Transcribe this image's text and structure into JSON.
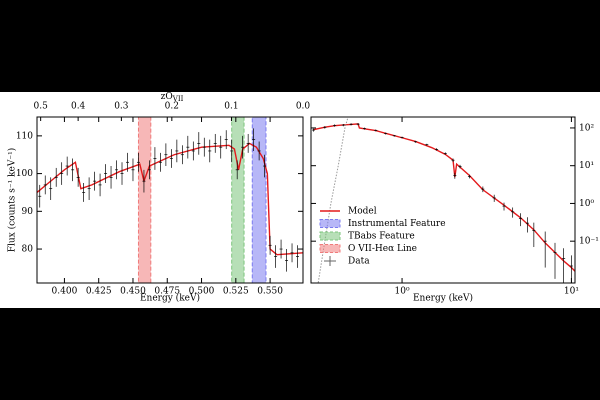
{
  "chart_data": [
    {
      "type": "spectrum",
      "xlabel": "Energy (keV)",
      "ylabel": "Flux (counts s⁻¹ keV⁻¹)",
      "xlim": [
        0.38,
        0.574
      ],
      "ylim": [
        71,
        115
      ],
      "xticks": [
        {
          "value": 0.4,
          "label": "0.400"
        },
        {
          "value": 0.425,
          "label": "0.425"
        },
        {
          "value": 0.45,
          "label": "0.450"
        },
        {
          "value": 0.475,
          "label": "0.475"
        },
        {
          "value": 0.5,
          "label": "0.500"
        },
        {
          "value": 0.525,
          "label": "0.525"
        },
        {
          "value": 0.55,
          "label": "0.550"
        }
      ],
      "yticks": [
        80,
        90,
        100,
        110
      ],
      "x2label": {
        "main": "zO",
        "sub": "VII"
      },
      "x2ticks": [
        0.5,
        0.4,
        0.3,
        0.2,
        0.1,
        {
          "value": 0,
          "label": "0.0"
        }
      ],
      "bands": [
        {
          "name": "Instrumental Feature",
          "color": "#7b7bf0",
          "range": [
            0.537,
            0.547
          ]
        },
        {
          "name": "TBabs Feature",
          "color": "#7cc47c",
          "range": [
            0.522,
            0.531
          ]
        },
        {
          "name": "O VII-Heα Line",
          "color": "#f07b7b",
          "range": [
            0.454,
            0.463
          ]
        }
      ],
      "series": [
        {
          "name": "Model",
          "color": "#e31a1c",
          "x": [
            0.38,
            0.39,
            0.4,
            0.408,
            0.412,
            0.42,
            0.44,
            0.455,
            0.458,
            0.462,
            0.48,
            0.5,
            0.52,
            0.524,
            0.527,
            0.53,
            0.535,
            0.54,
            0.545,
            0.548,
            0.55,
            0.555,
            0.574
          ],
          "values": [
            95,
            98,
            101,
            103,
            96,
            97,
            100.5,
            102.5,
            98,
            102,
            105,
            107,
            107.5,
            106.5,
            101,
            106.5,
            108,
            107,
            104,
            100,
            80,
            78.5,
            79
          ]
        },
        {
          "name": "Data",
          "color": "#000000",
          "x": [
            0.382,
            0.386,
            0.39,
            0.394,
            0.398,
            0.402,
            0.406,
            0.41,
            0.414,
            0.418,
            0.422,
            0.426,
            0.43,
            0.434,
            0.438,
            0.442,
            0.446,
            0.45,
            0.454,
            0.458,
            0.462,
            0.466,
            0.47,
            0.474,
            0.478,
            0.482,
            0.486,
            0.49,
            0.494,
            0.498,
            0.502,
            0.506,
            0.51,
            0.514,
            0.518,
            0.522,
            0.526,
            0.53,
            0.534,
            0.538,
            0.542,
            0.546,
            0.55,
            0.554,
            0.558,
            0.562,
            0.566,
            0.57
          ],
          "values": [
            94,
            97,
            96,
            99,
            100,
            102,
            101,
            99,
            95,
            96,
            98,
            97,
            100,
            99,
            101,
            100,
            103,
            101,
            103,
            98,
            101,
            104,
            103,
            105,
            104,
            106,
            105,
            107,
            106,
            108,
            107,
            106,
            108,
            107,
            109,
            106,
            101,
            107,
            108,
            109,
            106,
            102,
            81,
            78,
            80,
            77,
            79,
            78
          ],
          "errors": [
            3,
            2.5,
            3,
            2.5,
            3,
            2.5,
            3,
            2.5,
            2.5,
            3,
            2.5,
            3,
            2.5,
            3,
            2.5,
            3,
            2.5,
            3,
            2.5,
            3,
            2.5,
            3,
            2.5,
            3,
            2.5,
            3,
            2.5,
            3,
            2.5,
            3,
            2.5,
            3,
            2.5,
            3,
            2.5,
            3,
            2.5,
            3,
            2.5,
            3,
            2.5,
            3,
            2.5,
            3,
            2.5,
            3,
            2.5,
            3
          ]
        }
      ]
    },
    {
      "type": "spectrum",
      "xlabel": "Energy (keV)",
      "xlog": true,
      "ylog": true,
      "xlim": [
        0.29,
        10.5
      ],
      "ylim": [
        0.0078,
        195
      ],
      "xticks": [
        {
          "value": 1,
          "label": "10⁰"
        },
        {
          "value": 10,
          "label": "10¹"
        }
      ],
      "yticks": [
        {
          "value": 100,
          "label": "10²"
        },
        {
          "value": 10,
          "label": "10¹"
        },
        {
          "value": 1,
          "label": "10⁰"
        },
        {
          "value": 0.1,
          "label": "10⁻¹"
        }
      ],
      "series": [
        {
          "color": "#e31a1c",
          "x": [
            0.3,
            0.35,
            0.4,
            0.45,
            0.5,
            0.55,
            0.56,
            0.6,
            0.7,
            0.8,
            1.0,
            1.2,
            1.5,
            1.8,
            2.0,
            2.05,
            2.1,
            2.5,
            3,
            4,
            5,
            6,
            7,
            8,
            9,
            10,
            10.5
          ],
          "values": [
            90,
            105,
            115,
            120,
            124,
            128,
            100,
            95,
            85,
            72,
            55,
            44,
            30,
            20,
            14,
            5,
            11,
            5.5,
            2.3,
            0.9,
            0.42,
            0.2,
            0.09,
            0.05,
            0.03,
            0.02,
            0.016
          ]
        },
        {
          "color": "#000000",
          "x": [
            0.3,
            0.35,
            0.4,
            0.45,
            0.5,
            0.55,
            0.6,
            0.7,
            0.8,
            0.9,
            1.0,
            1.2,
            1.4,
            1.6,
            1.8,
            2.0,
            2.05,
            2.2,
            2.5,
            3,
            3.5,
            4,
            4.5,
            5,
            5.5,
            6,
            7,
            8,
            9,
            10
          ],
          "values": [
            88,
            104,
            116,
            119,
            125,
            126,
            96,
            86,
            71,
            62,
            56,
            43,
            36,
            27,
            21,
            14,
            5.5,
            9.5,
            5.2,
            2.4,
            1.4,
            0.85,
            0.6,
            0.4,
            0.3,
            0.19,
            0.1,
            0.05,
            0.035,
            0.022
          ],
          "errors": [
            8,
            8,
            8,
            8,
            8,
            8,
            6,
            5,
            4,
            3,
            3,
            2.5,
            2,
            2,
            1.5,
            1.5,
            1,
            1,
            0.6,
            0.4,
            0.3,
            0.2,
            0.18,
            0.15,
            0.13,
            0.12,
            0.08,
            0.04,
            0.03,
            0.02
          ]
        },
        {
          "color": "#999999",
          "style": "dotted",
          "x": [
            0.32,
            0.35,
            0.38,
            0.42,
            0.46,
            0.48
          ],
          "values": [
            0.008,
            0.1,
            1,
            10,
            100,
            195
          ]
        }
      ]
    }
  ]
}
